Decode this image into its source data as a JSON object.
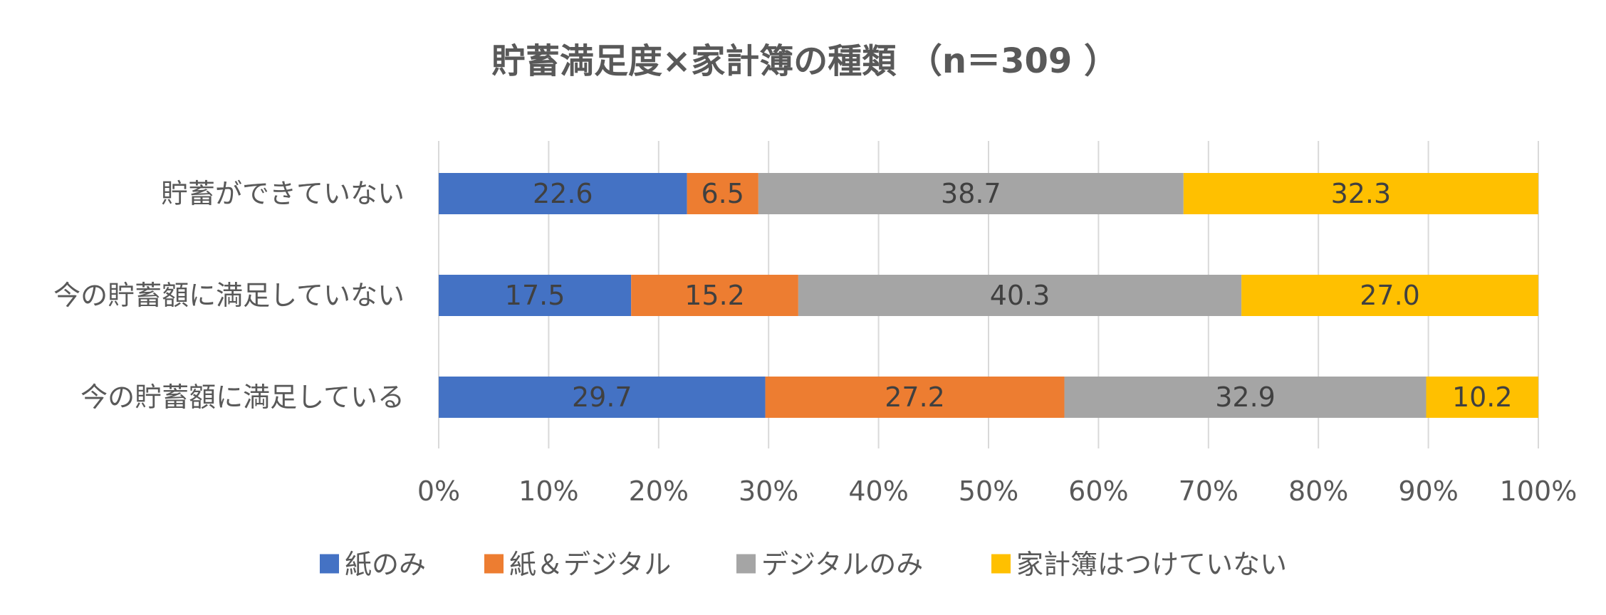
{
  "chart_data": {
    "type": "bar",
    "orientation": "horizontal",
    "stacked": "percent",
    "title": "貯蓄満足度×家計簿の種類 （n＝309 ）",
    "xlabel": "",
    "ylabel": "",
    "xlim": [
      0,
      100
    ],
    "x_ticks": [
      "0%",
      "10%",
      "20%",
      "30%",
      "40%",
      "50%",
      "60%",
      "70%",
      "80%",
      "90%",
      "100%"
    ],
    "grid": "vertical",
    "legend_position": "bottom",
    "categories": [
      "貯蓄ができていない",
      "今の貯蓄額に満足していない",
      "今の貯蓄額に満足している"
    ],
    "series": [
      {
        "name": "紙のみ",
        "color": "#4472C4",
        "values": [
          22.6,
          17.5,
          29.7
        ],
        "labels": [
          "22.6",
          "17.5",
          "29.7"
        ]
      },
      {
        "name": "紙＆デジタル",
        "color": "#ED7D31",
        "values": [
          6.5,
          15.2,
          27.2
        ],
        "labels": [
          "6.5",
          "15.2",
          "27.2"
        ]
      },
      {
        "name": "デジタルのみ",
        "color": "#A5A5A5",
        "values": [
          38.7,
          40.3,
          32.9
        ],
        "labels": [
          "38.7",
          "40.3",
          "32.9"
        ]
      },
      {
        "name": "家計簿はつけていない",
        "color": "#FFC000",
        "values": [
          32.3,
          27.0,
          10.2
        ],
        "labels": [
          "32.3",
          "27.0",
          "10.2"
        ]
      }
    ]
  }
}
